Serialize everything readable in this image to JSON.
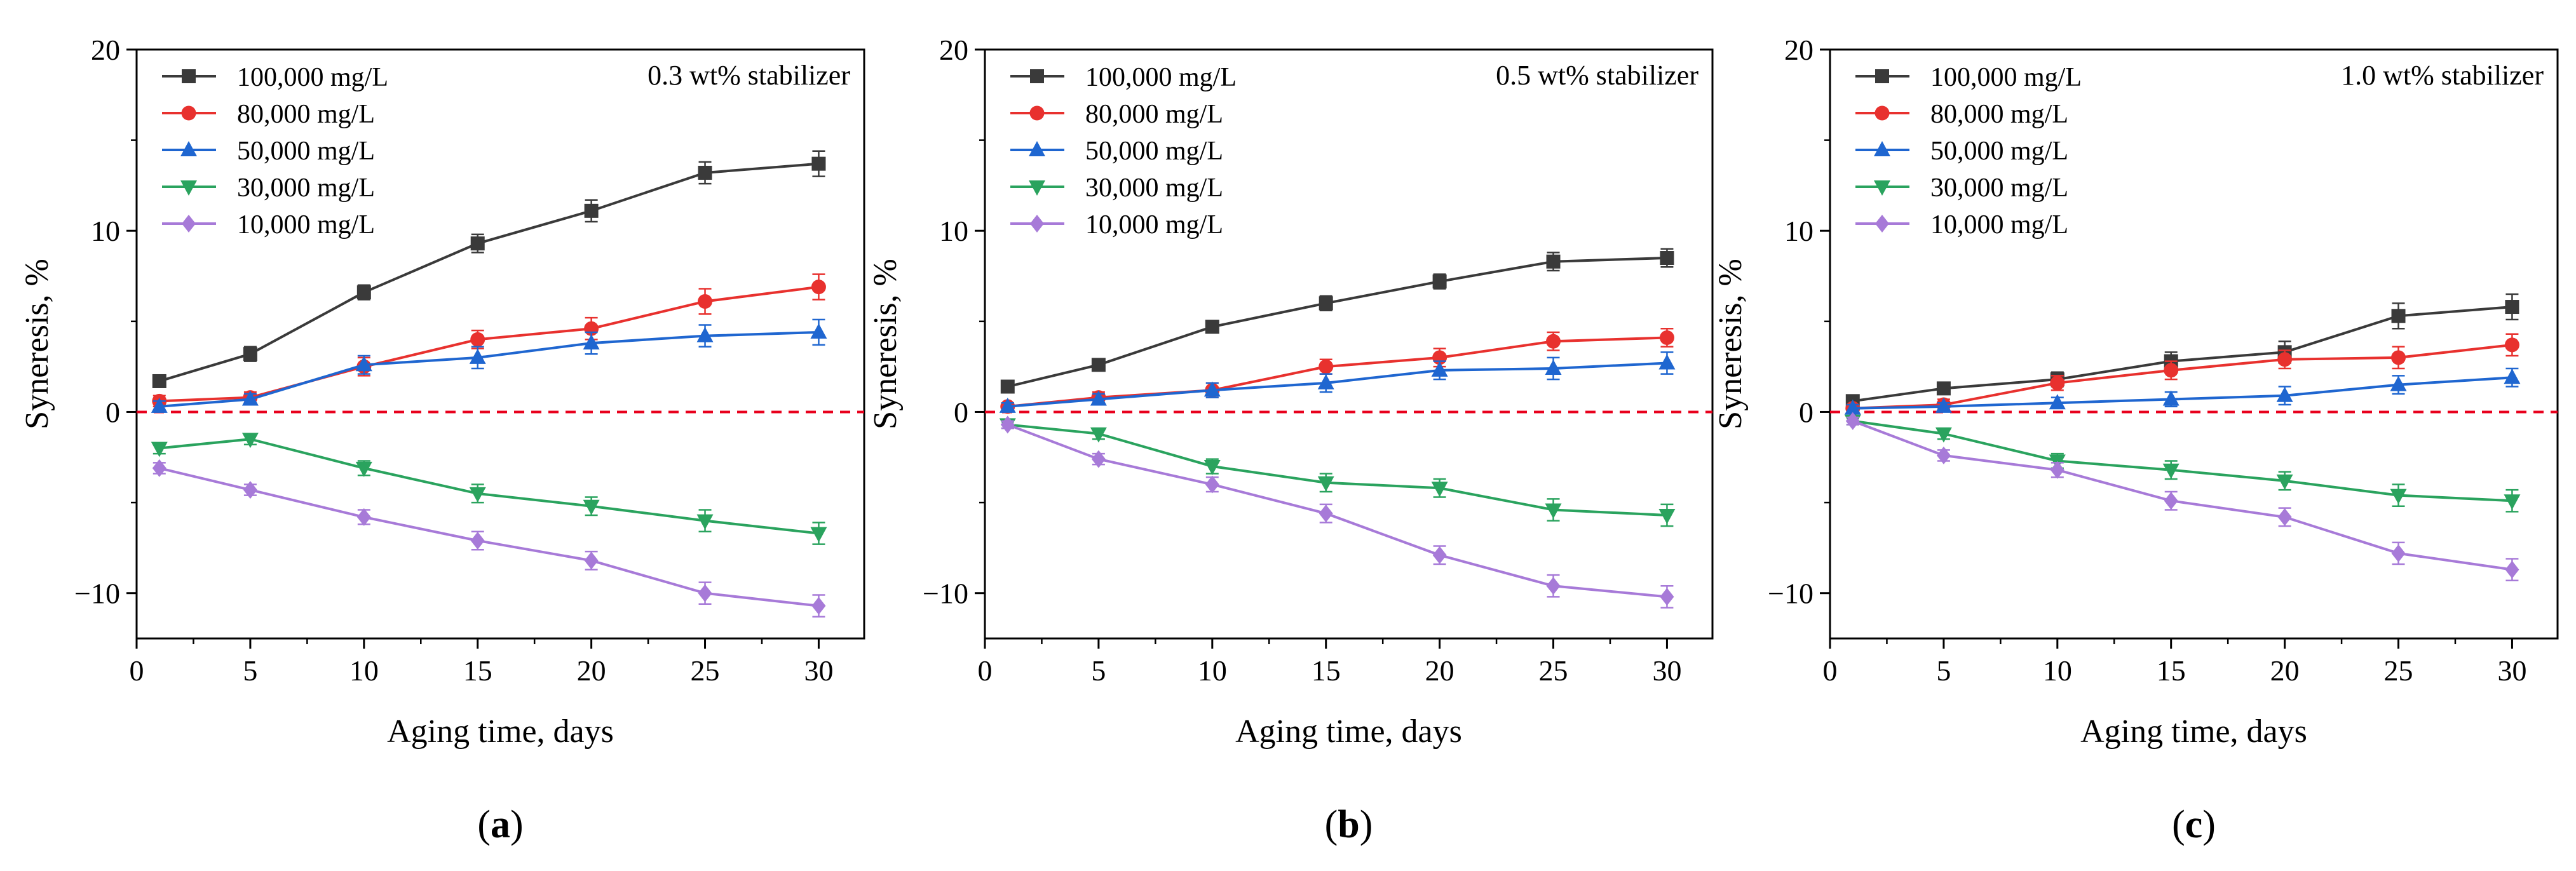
{
  "figure": {
    "panels": [
      "(a)",
      "(b)",
      "(c)"
    ]
  },
  "colors": {
    "100,000 mg/L": "#3a3a3a",
    "80,000 mg/L": "#e8312e",
    "50,000 mg/L": "#1f66d0",
    "30,000 mg/L": "#2aa35e",
    "10,000 mg/L": "#a77ad8",
    "zero_line": "#e8001c"
  },
  "chart_data": [
    {
      "type": "line",
      "panel_label": "(a)",
      "annotation": "0.3 wt% stabilizer",
      "xlabel": "Aging time, days",
      "ylabel": "Syneresis, %",
      "xlim": [
        0,
        32
      ],
      "ylim": [
        -12.5,
        20
      ],
      "xticks": [
        0,
        5,
        10,
        15,
        20,
        25,
        30
      ],
      "yticks": [
        -10,
        0,
        10,
        20
      ],
      "x": [
        1,
        5,
        10,
        15,
        20,
        25,
        30
      ],
      "series": [
        {
          "name": "100,000 mg/L",
          "marker": "square",
          "values": [
            1.7,
            3.2,
            6.6,
            9.3,
            11.1,
            13.2,
            13.7
          ],
          "errors": [
            0.3,
            0.4,
            0.4,
            0.5,
            0.6,
            0.6,
            0.7
          ]
        },
        {
          "name": "80,000 mg/L",
          "marker": "circle",
          "values": [
            0.6,
            0.8,
            2.5,
            4.0,
            4.6,
            6.1,
            6.9
          ],
          "errors": [
            0.3,
            0.3,
            0.5,
            0.5,
            0.6,
            0.7,
            0.7
          ]
        },
        {
          "name": "50,000 mg/L",
          "marker": "triangle-up",
          "values": [
            0.3,
            0.7,
            2.6,
            3.0,
            3.8,
            4.2,
            4.4
          ],
          "errors": [
            0.3,
            0.3,
            0.5,
            0.6,
            0.6,
            0.6,
            0.7
          ]
        },
        {
          "name": "30,000 mg/L",
          "marker": "triangle-down",
          "values": [
            -2.0,
            -1.5,
            -3.1,
            -4.5,
            -5.2,
            -6.0,
            -6.7
          ],
          "errors": [
            0.3,
            0.3,
            0.4,
            0.5,
            0.5,
            0.6,
            0.6
          ]
        },
        {
          "name": "10,000 mg/L",
          "marker": "diamond",
          "values": [
            -3.1,
            -4.3,
            -5.8,
            -7.1,
            -8.2,
            -10.0,
            -10.7
          ],
          "errors": [
            0.3,
            0.3,
            0.4,
            0.5,
            0.5,
            0.6,
            0.6
          ]
        }
      ]
    },
    {
      "type": "line",
      "panel_label": "(b)",
      "annotation": "0.5 wt% stabilizer",
      "xlabel": "Aging time, days",
      "ylabel": "Syneresis, %",
      "xlim": [
        0,
        32
      ],
      "ylim": [
        -12.5,
        20
      ],
      "xticks": [
        0,
        5,
        10,
        15,
        20,
        25,
        30
      ],
      "yticks": [
        -10,
        0,
        10,
        20
      ],
      "x": [
        1,
        5,
        10,
        15,
        20,
        25,
        30
      ],
      "series": [
        {
          "name": "100,000 mg/L",
          "marker": "square",
          "values": [
            1.4,
            2.6,
            4.7,
            6.0,
            7.2,
            8.3,
            8.5
          ],
          "errors": [
            0.2,
            0.3,
            0.3,
            0.4,
            0.4,
            0.5,
            0.5
          ]
        },
        {
          "name": "80,000 mg/L",
          "marker": "circle",
          "values": [
            0.3,
            0.8,
            1.2,
            2.5,
            3.0,
            3.9,
            4.1
          ],
          "errors": [
            0.2,
            0.3,
            0.4,
            0.4,
            0.5,
            0.5,
            0.5
          ]
        },
        {
          "name": "50,000 mg/L",
          "marker": "triangle-up",
          "values": [
            0.3,
            0.7,
            1.2,
            1.6,
            2.3,
            2.4,
            2.7
          ],
          "errors": [
            0.2,
            0.3,
            0.4,
            0.5,
            0.5,
            0.6,
            0.6
          ]
        },
        {
          "name": "30,000 mg/L",
          "marker": "triangle-down",
          "values": [
            -0.7,
            -1.2,
            -3.0,
            -3.9,
            -4.2,
            -5.4,
            -5.7
          ],
          "errors": [
            0.2,
            0.3,
            0.4,
            0.5,
            0.5,
            0.6,
            0.6
          ]
        },
        {
          "name": "10,000 mg/L",
          "marker": "diamond",
          "values": [
            -0.7,
            -2.6,
            -4.0,
            -5.6,
            -7.9,
            -9.6,
            -10.2
          ],
          "errors": [
            0.2,
            0.3,
            0.4,
            0.5,
            0.5,
            0.6,
            0.6
          ]
        }
      ]
    },
    {
      "type": "line",
      "panel_label": "(c)",
      "annotation": "1.0 wt% stabilizer",
      "xlabel": "Aging time, days",
      "ylabel": "Syneresis, %",
      "xlim": [
        0,
        32
      ],
      "ylim": [
        -12.5,
        20
      ],
      "xticks": [
        0,
        5,
        10,
        15,
        20,
        25,
        30
      ],
      "yticks": [
        -10,
        0,
        10,
        20
      ],
      "x": [
        1,
        5,
        10,
        15,
        20,
        25,
        30
      ],
      "series": [
        {
          "name": "100,000 mg/L",
          "marker": "square",
          "values": [
            0.6,
            1.3,
            1.8,
            2.8,
            3.3,
            5.3,
            5.8
          ],
          "errors": [
            0.2,
            0.3,
            0.4,
            0.5,
            0.6,
            0.7,
            0.7
          ]
        },
        {
          "name": "80,000 mg/L",
          "marker": "circle",
          "values": [
            0.2,
            0.4,
            1.6,
            2.3,
            2.9,
            3.0,
            3.7
          ],
          "errors": [
            0.2,
            0.3,
            0.4,
            0.5,
            0.5,
            0.6,
            0.6
          ]
        },
        {
          "name": "50,000 mg/L",
          "marker": "triangle-up",
          "values": [
            0.2,
            0.3,
            0.5,
            0.7,
            0.9,
            1.5,
            1.9
          ],
          "errors": [
            0.2,
            0.2,
            0.3,
            0.4,
            0.5,
            0.5,
            0.5
          ]
        },
        {
          "name": "30,000 mg/L",
          "marker": "triangle-down",
          "values": [
            -0.5,
            -1.2,
            -2.7,
            -3.2,
            -3.8,
            -4.6,
            -4.9
          ],
          "errors": [
            0.2,
            0.3,
            0.4,
            0.5,
            0.5,
            0.6,
            0.6
          ]
        },
        {
          "name": "10,000 mg/L",
          "marker": "diamond",
          "values": [
            -0.5,
            -2.4,
            -3.2,
            -4.9,
            -5.8,
            -7.8,
            -8.7
          ],
          "errors": [
            0.2,
            0.3,
            0.4,
            0.5,
            0.5,
            0.6,
            0.6
          ]
        }
      ]
    }
  ]
}
